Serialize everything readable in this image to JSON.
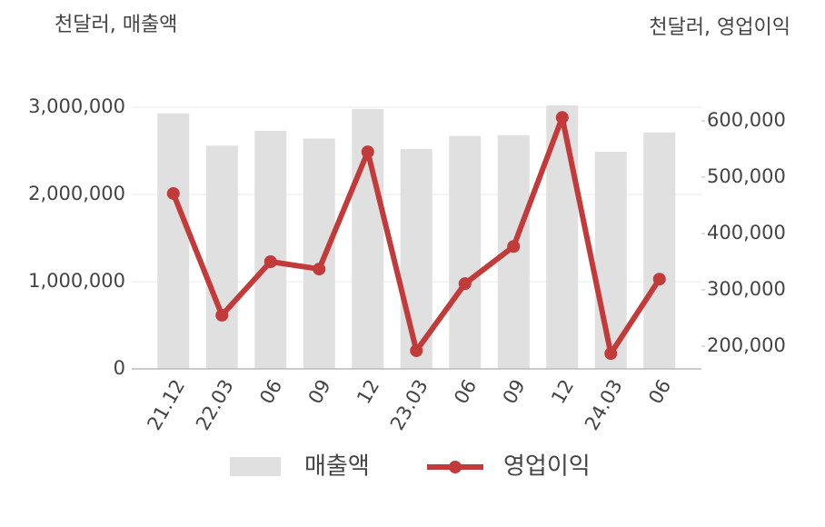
{
  "chart_data": {
    "type": "combo",
    "y_label": "천달러, 매출액",
    "y2_label": "천달러, 영업이익",
    "categories": [
      "21.12",
      "22.03",
      "06",
      "09",
      "12",
      "23.03",
      "06",
      "09",
      "12",
      "24.03",
      "06"
    ],
    "series": [
      {
        "name": "매출액",
        "type": "bar",
        "color": "#e0e0e0",
        "values": [
          2930000,
          2560000,
          2730000,
          2640000,
          2980000,
          2520000,
          2670000,
          2680000,
          3020000,
          2490000,
          2710000
        ]
      },
      {
        "name": "영업이익",
        "type": "line",
        "axis": "y2",
        "color": "#c23a3a",
        "values": [
          471000,
          255000,
          350000,
          337000,
          545000,
          192000,
          311000,
          377000,
          606000,
          187000,
          319000
        ]
      }
    ],
    "ylim": [
      0,
      3187500
    ],
    "yticks": [
      0,
      {
        "value": 1000000,
        "label": "1,000,000"
      },
      {
        "value": 2000000,
        "label": "2,000,000"
      },
      {
        "value": 3000000,
        "label": "3,000,000"
      }
    ],
    "y2lim": [
      159700,
      653200
    ],
    "y2ticks": [
      {
        "value": 200000,
        "label": "200,000"
      },
      {
        "value": 300000,
        "label": "300,000"
      },
      {
        "value": 400000,
        "label": "400,000"
      },
      {
        "value": 500000,
        "label": "500,000"
      },
      {
        "value": 600000,
        "label": "600,000"
      }
    ],
    "grid": true
  }
}
